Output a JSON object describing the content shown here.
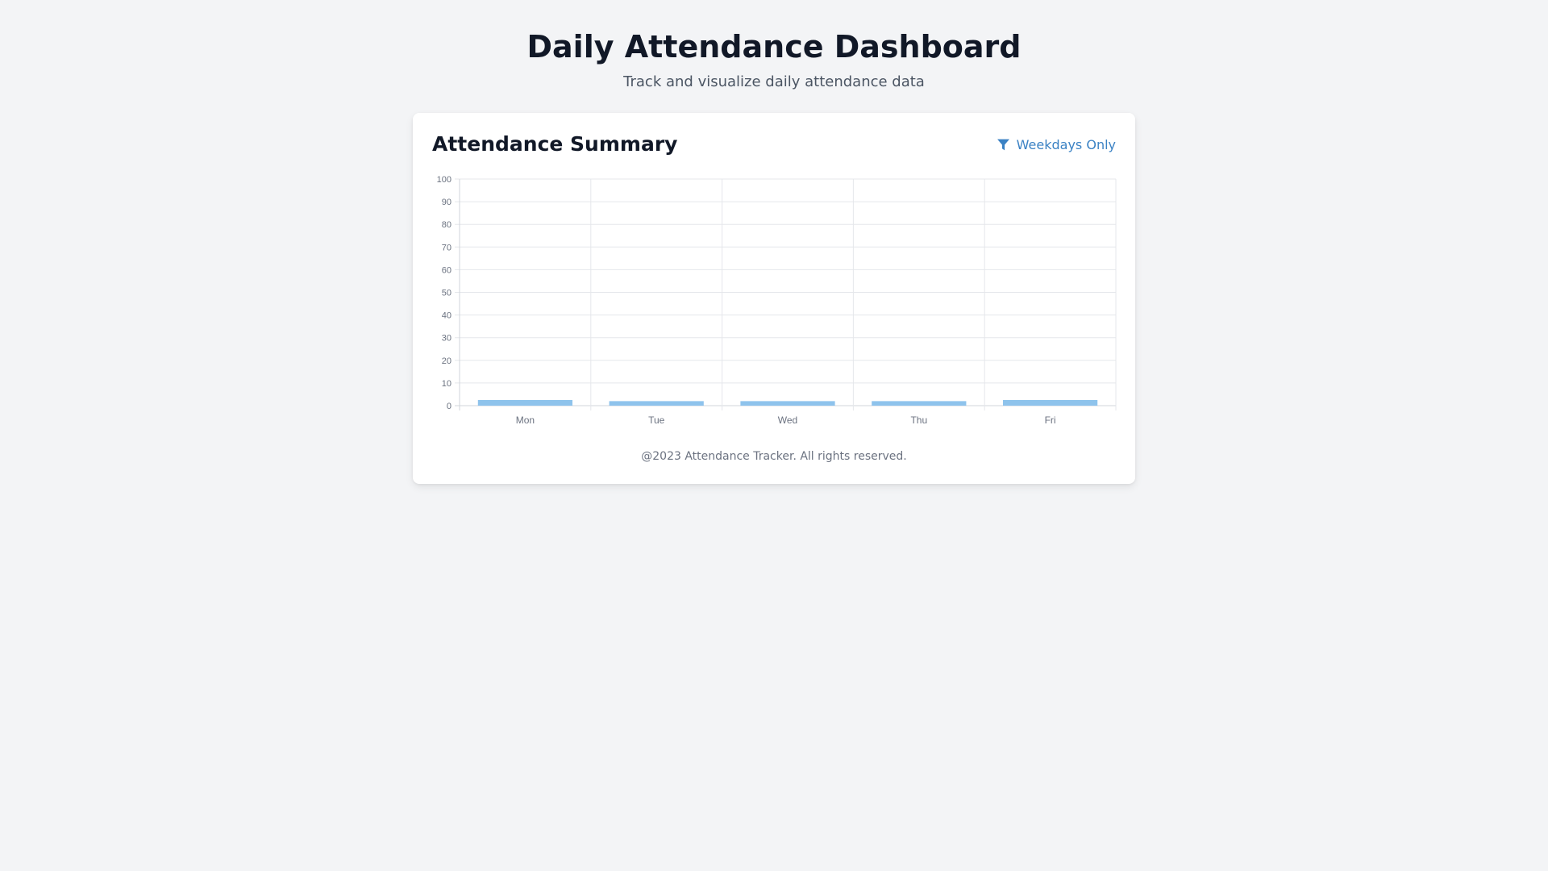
{
  "header": {
    "title": "Daily Attendance Dashboard",
    "subtitle": "Track and visualize daily attendance data"
  },
  "card": {
    "title": "Attendance Summary",
    "filter_label": "Weekdays Only",
    "filter_icon": "filter-icon"
  },
  "footer": {
    "text": "@2023 Attendance Tracker. All rights reserved."
  },
  "colors": {
    "accent": "#3b82c4",
    "bar": "#8ec3ec",
    "grid": "#e5e7eb",
    "background": "#f3f4f6"
  },
  "chart_data": {
    "type": "bar",
    "categories": [
      "Mon",
      "Tue",
      "Wed",
      "Thu",
      "Fri"
    ],
    "values": [
      2.5,
      2,
      2,
      2,
      2.5
    ],
    "ylim": [
      0,
      100
    ],
    "yticks": [
      0,
      10,
      20,
      30,
      40,
      50,
      60,
      70,
      80,
      90,
      100
    ],
    "grid": true
  }
}
